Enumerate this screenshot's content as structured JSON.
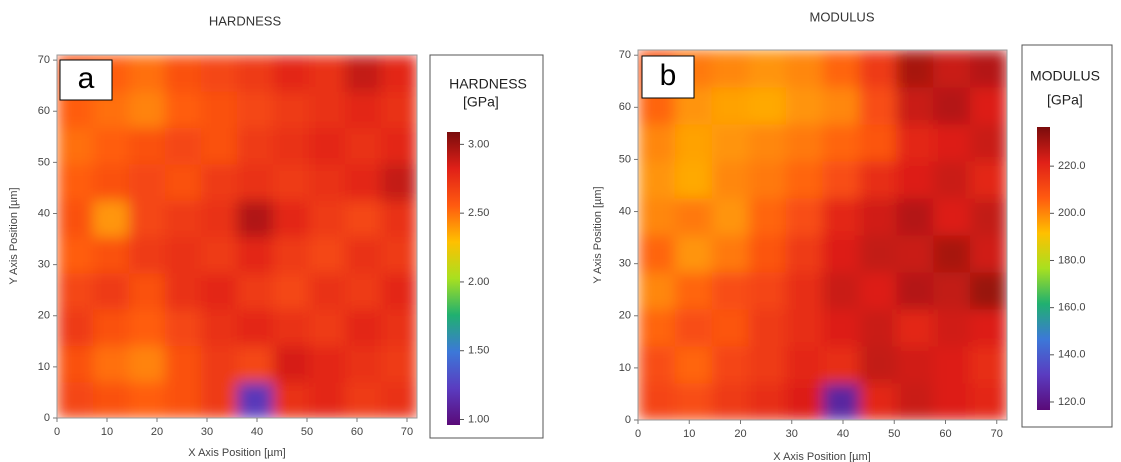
{
  "chart_data": [
    {
      "type": "heatmap",
      "title": "HARDNESS",
      "panel_label": "a",
      "x_label": "X Axis Position [µm]",
      "y_label": "Y Axis Position [µm]",
      "colorbar_title": "HARDNESS",
      "colorbar_unit": "[GPa]",
      "xlim": [
        0,
        72
      ],
      "ylim": [
        0,
        71
      ],
      "xticks": [
        0,
        10,
        20,
        30,
        40,
        50,
        60,
        70
      ],
      "yticks": [
        0,
        10,
        20,
        30,
        40,
        50,
        60,
        70
      ],
      "x": [
        3.6,
        10.8,
        18,
        25.2,
        32.4,
        39.6,
        46.8,
        54,
        61.2,
        68.4
      ],
      "y": [
        3.55,
        10.65,
        17.75,
        24.85,
        31.95,
        39.05,
        46.15,
        53.25,
        60.35,
        67.45
      ],
      "z": [
        [
          2.65,
          2.6,
          2.55,
          2.6,
          2.7,
          1.2,
          2.75,
          2.8,
          2.7,
          2.75
        ],
        [
          2.6,
          2.5,
          2.45,
          2.6,
          2.7,
          2.65,
          2.85,
          2.8,
          2.75,
          2.7
        ],
        [
          2.7,
          2.6,
          2.55,
          2.65,
          2.75,
          2.8,
          2.75,
          2.7,
          2.8,
          2.75
        ],
        [
          2.65,
          2.7,
          2.6,
          2.75,
          2.8,
          2.7,
          2.65,
          2.75,
          2.7,
          2.8
        ],
        [
          2.55,
          2.6,
          2.7,
          2.75,
          2.7,
          2.8,
          2.7,
          2.65,
          2.75,
          2.7
        ],
        [
          2.6,
          2.4,
          2.65,
          2.7,
          2.75,
          2.95,
          2.8,
          2.7,
          2.65,
          2.75
        ],
        [
          2.55,
          2.6,
          2.65,
          2.6,
          2.7,
          2.75,
          2.7,
          2.75,
          2.8,
          2.9
        ],
        [
          2.5,
          2.55,
          2.6,
          2.65,
          2.6,
          2.7,
          2.75,
          2.8,
          2.75,
          2.8
        ],
        [
          2.55,
          2.5,
          2.45,
          2.55,
          2.6,
          2.65,
          2.7,
          2.75,
          2.8,
          2.75
        ],
        [
          2.6,
          2.55,
          2.5,
          2.6,
          2.65,
          2.7,
          2.8,
          2.75,
          2.9,
          2.8
        ]
      ],
      "clim": [
        0.96,
        3.09
      ],
      "colorscale": [
        "#5a0a78",
        "#5a3cc0",
        "#3c78d8",
        "#20b070",
        "#a8e020",
        "#ffc000",
        "#ff5a10",
        "#e02018",
        "#7a0c0c"
      ],
      "cticks": [
        {
          "value": 1,
          "label": "1.00"
        },
        {
          "value": 1.5,
          "label": "1.50"
        },
        {
          "value": 2,
          "label": "2.00"
        },
        {
          "value": 2.5,
          "label": "2.50"
        },
        {
          "value": 3,
          "label": "3.00"
        }
      ]
    },
    {
      "type": "heatmap",
      "title": "MODULUS",
      "panel_label": "b",
      "x_label": "X Axis Position [µm]",
      "y_label": "Y Axis Position [µm]",
      "colorbar_title": "MODULUS",
      "colorbar_unit": "[GPa]",
      "xlim": [
        0,
        72
      ],
      "ylim": [
        0,
        71
      ],
      "xticks": [
        0,
        10,
        20,
        30,
        40,
        50,
        60,
        70
      ],
      "yticks": [
        0,
        10,
        20,
        30,
        40,
        50,
        60,
        70
      ],
      "x": [
        3.6,
        10.8,
        18,
        25.2,
        32.4,
        39.6,
        46.8,
        54,
        61.2,
        68.4
      ],
      "y": [
        3.55,
        10.65,
        17.75,
        24.85,
        31.95,
        39.05,
        46.15,
        53.25,
        60.35,
        67.45
      ],
      "z": [
        [
          212,
          210,
          215,
          218,
          222,
          125,
          220,
          225,
          222,
          220
        ],
        [
          210,
          205,
          212,
          215,
          220,
          218,
          226,
          224,
          222,
          218
        ],
        [
          205,
          210,
          208,
          215,
          218,
          222,
          225,
          220,
          224,
          222
        ],
        [
          200,
          205,
          210,
          212,
          218,
          225,
          222,
          228,
          226,
          232
        ],
        [
          205,
          198,
          202,
          208,
          215,
          222,
          226,
          225,
          230,
          224
        ],
        [
          200,
          202,
          198,
          205,
          210,
          220,
          224,
          228,
          222,
          226
        ],
        [
          198,
          195,
          200,
          202,
          205,
          210,
          218,
          222,
          225,
          220
        ],
        [
          200,
          196,
          198,
          200,
          202,
          205,
          208,
          220,
          222,
          225
        ],
        [
          205,
          198,
          196,
          195,
          198,
          200,
          210,
          225,
          228,
          222
        ],
        [
          208,
          202,
          200,
          198,
          200,
          205,
          215,
          230,
          225,
          228
        ]
      ],
      "clim": [
        116.6,
        236.6
      ],
      "colorscale": [
        "#5a0a78",
        "#5a3cc0",
        "#3c78d8",
        "#20b070",
        "#a8e020",
        "#ffc000",
        "#ff5a10",
        "#e02018",
        "#7a0c0c"
      ],
      "cticks": [
        {
          "value": 120,
          "label": "120.0"
        },
        {
          "value": 140,
          "label": "140.0"
        },
        {
          "value": 160,
          "label": "160.0"
        },
        {
          "value": 180,
          "label": "180.0"
        },
        {
          "value": 200,
          "label": "200.0"
        },
        {
          "value": 220,
          "label": "220.0"
        }
      ]
    }
  ]
}
